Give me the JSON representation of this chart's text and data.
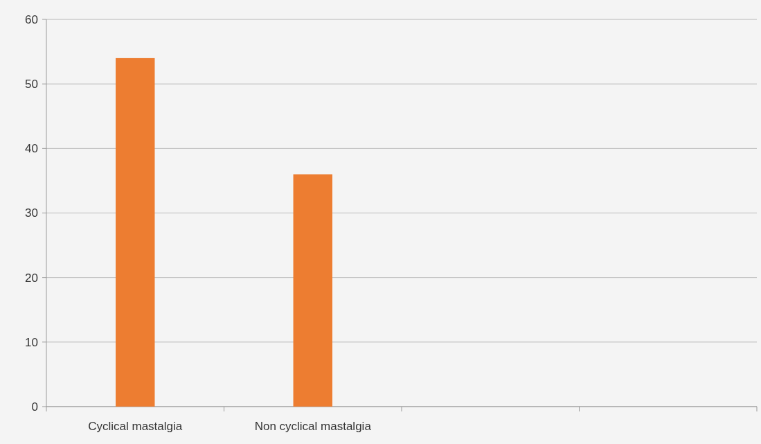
{
  "chart_data": {
    "type": "bar",
    "categories": [
      "Cyclical mastalgia",
      "Non cyclical mastalgia",
      null,
      null
    ],
    "values": [
      54,
      36,
      null,
      null
    ],
    "color": "#ed7d31",
    "ylim": [
      0,
      60
    ],
    "yticks": [
      0,
      10,
      20,
      30,
      40,
      50,
      60
    ],
    "grid": "y"
  }
}
